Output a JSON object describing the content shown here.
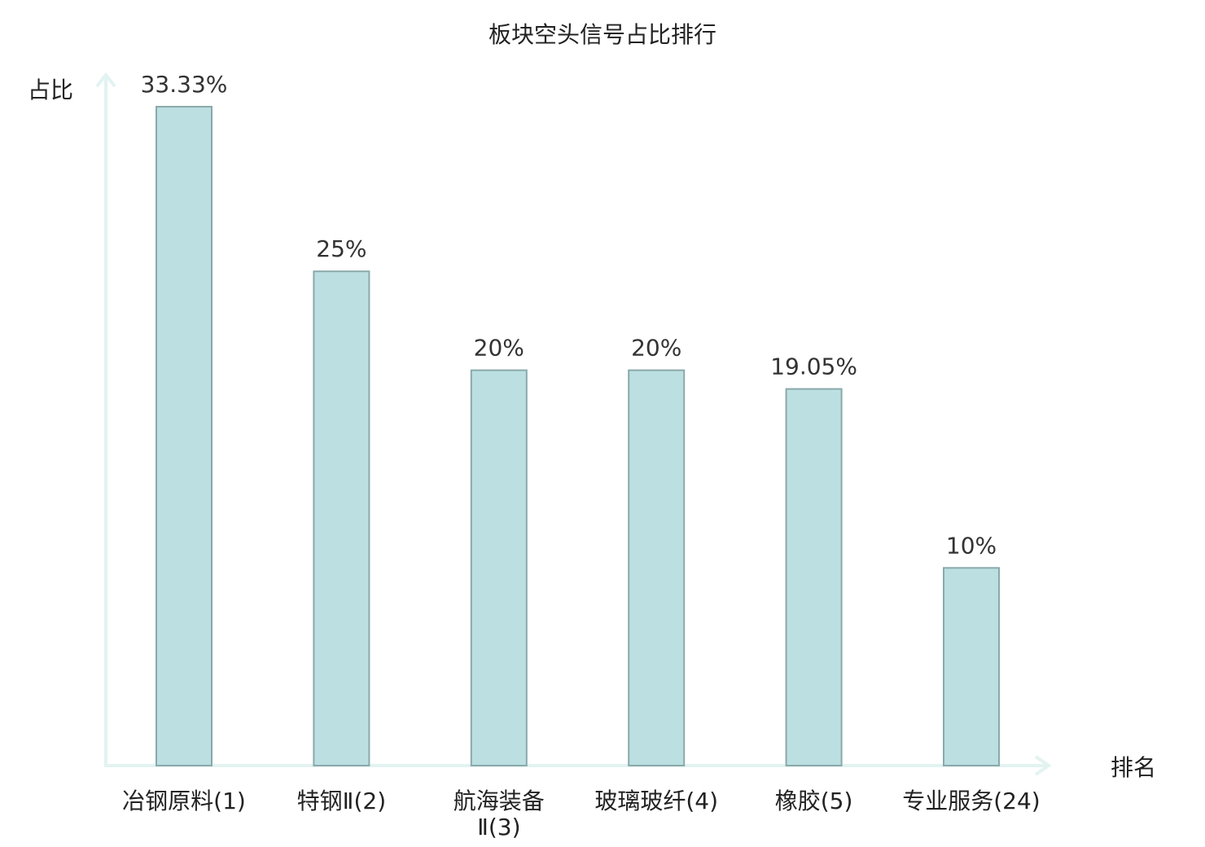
{
  "chart_data": {
    "type": "bar",
    "title": "板块空头信号占比排行",
    "ylabel": "占比",
    "xlabel": "排名",
    "categories": [
      "冶钢原料(1)",
      "特钢Ⅱ(2)",
      "航海装备Ⅱ(3)",
      "玻璃玻纤(4)",
      "橡胶(5)",
      "专业服务(24)"
    ],
    "category_lines": [
      [
        "冶钢原料(1)"
      ],
      [
        "特钢Ⅱ(2)"
      ],
      [
        "航海装备",
        "Ⅱ(3)"
      ],
      [
        "玻璃玻纤(4)"
      ],
      [
        "橡胶(5)"
      ],
      [
        "专业服务(24)"
      ]
    ],
    "values": [
      33.33,
      25,
      20,
      20,
      19.05,
      10
    ],
    "data_labels": [
      "33.33%",
      "25%",
      "20%",
      "20%",
      "19.05%",
      "10%"
    ],
    "highlight_index": 5,
    "ylim": [
      0,
      35
    ],
    "grid": false,
    "colors": {
      "bar_fill": "#bce0e2",
      "bar_stroke": "#8aa9ab",
      "axis": "#e2f3f1",
      "text": "#222222",
      "highlight": "#e8302c"
    }
  }
}
